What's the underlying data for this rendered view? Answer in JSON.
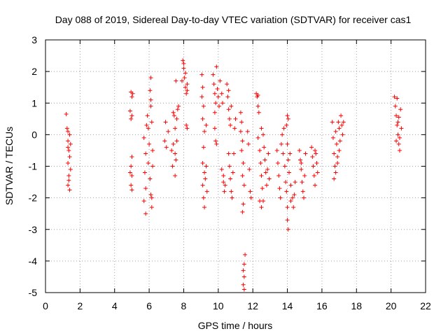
{
  "chart_data": {
    "type": "scatter",
    "title": "Day 088 of 2019, Sidereal Day-to-day VTEC variation (SDTVAR) for receiver cas1",
    "xlabel": "GPS time / hours",
    "ylabel": "SDTVAR / TECUs",
    "xlim": [
      0,
      22
    ],
    "ylim": [
      -5,
      3
    ],
    "xticks": [
      0,
      2,
      4,
      6,
      8,
      10,
      12,
      14,
      16,
      18,
      20,
      22
    ],
    "yticks": [
      -5,
      -4,
      -3,
      -2,
      -1,
      0,
      1,
      2,
      3
    ],
    "grid": true,
    "marker": "+",
    "color": "#ff0000",
    "series": [
      {
        "name": "SDTVAR",
        "points": [
          [
            1.2,
            0.65
          ],
          [
            1.25,
            0.2
          ],
          [
            1.3,
            0.1
          ],
          [
            1.3,
            -0.2
          ],
          [
            1.35,
            -0.5
          ],
          [
            1.3,
            -0.9
          ],
          [
            1.35,
            -1.3
          ],
          [
            1.3,
            -1.6
          ],
          [
            1.4,
            -1.75
          ],
          [
            1.4,
            0.0
          ],
          [
            1.45,
            -0.3
          ],
          [
            1.4,
            -0.7
          ],
          [
            1.45,
            -1.1
          ],
          [
            1.35,
            -1.45
          ],
          [
            1.3,
            -0.4
          ],
          [
            4.95,
            1.35
          ],
          [
            5.0,
            1.2
          ],
          [
            4.9,
            0.75
          ],
          [
            4.95,
            0.5
          ],
          [
            5.0,
            -0.7
          ],
          [
            4.95,
            -1.0
          ],
          [
            5.0,
            -1.3
          ],
          [
            4.95,
            -1.6
          ],
          [
            5.0,
            -1.75
          ],
          [
            4.9,
            -1.2
          ],
          [
            5.05,
            1.3
          ],
          [
            5.0,
            0.6
          ],
          [
            5.7,
            -0.1
          ],
          [
            5.8,
            -0.6
          ],
          [
            5.75,
            -1.2
          ],
          [
            5.8,
            -1.7
          ],
          [
            5.7,
            -2.1
          ],
          [
            5.8,
            -2.5
          ],
          [
            5.9,
            0.6
          ],
          [
            5.95,
            0.2
          ],
          [
            6.0,
            -0.3
          ],
          [
            5.95,
            -0.9
          ],
          [
            6.05,
            -1.4
          ],
          [
            6.1,
            -1.9
          ],
          [
            6.15,
            -2.3
          ],
          [
            6.1,
            1.8
          ],
          [
            6.05,
            1.4
          ],
          [
            6.1,
            0.9
          ],
          [
            6.15,
            0.4
          ],
          [
            6.2,
            -0.5
          ],
          [
            6.2,
            -1.0
          ],
          [
            6.15,
            -2.0
          ],
          [
            6.1,
            1.1
          ],
          [
            5.85,
            0.3
          ],
          [
            6.9,
            -0.2
          ],
          [
            7.0,
            -0.4
          ],
          [
            6.95,
            0.4
          ],
          [
            7.1,
            0.1
          ],
          [
            7.3,
            -0.5
          ],
          [
            7.35,
            -1.0
          ],
          [
            7.4,
            -0.3
          ],
          [
            7.45,
            0.6
          ],
          [
            7.5,
            0.2
          ],
          [
            7.55,
            -0.8
          ],
          [
            7.5,
            -1.3
          ],
          [
            7.6,
            0.5
          ],
          [
            7.65,
            0.8
          ],
          [
            7.6,
            -0.2
          ],
          [
            7.7,
            0.9
          ],
          [
            7.55,
            1.7
          ],
          [
            7.4,
            0.7
          ],
          [
            7.5,
            -0.6
          ],
          [
            7.95,
            2.35
          ],
          [
            8.0,
            2.1
          ],
          [
            8.05,
            1.8
          ],
          [
            8.1,
            1.5
          ],
          [
            8.15,
            1.3
          ],
          [
            8.2,
            1.6
          ],
          [
            8.0,
            2.25
          ],
          [
            8.1,
            1.95
          ],
          [
            8.2,
            1.4
          ],
          [
            8.15,
            0.3
          ],
          [
            8.2,
            0.2
          ],
          [
            7.9,
            1.7
          ],
          [
            9.05,
            1.9
          ],
          [
            9.1,
            1.5
          ],
          [
            9.05,
            1.2
          ],
          [
            9.15,
            0.9
          ],
          [
            9.1,
            0.5
          ],
          [
            9.2,
            0.1
          ],
          [
            9.15,
            -0.4
          ],
          [
            9.1,
            -0.9
          ],
          [
            9.2,
            -1.2
          ],
          [
            9.1,
            -1.6
          ],
          [
            9.15,
            -2.0
          ],
          [
            9.2,
            -2.3
          ],
          [
            9.25,
            -1.4
          ],
          [
            9.3,
            -1.0
          ],
          [
            9.35,
            -1.8
          ],
          [
            9.3,
            0.3
          ],
          [
            9.7,
            1.9
          ],
          [
            9.75,
            1.6
          ],
          [
            9.8,
            1.3
          ],
          [
            9.85,
            1.0
          ],
          [
            9.8,
            0.7
          ],
          [
            9.9,
            2.15
          ],
          [
            9.95,
            1.45
          ],
          [
            10.0,
            1.2
          ],
          [
            9.8,
            0.2
          ],
          [
            9.85,
            -0.2
          ],
          [
            9.9,
            -0.3
          ],
          [
            10.05,
            0.9
          ],
          [
            10.1,
            1.7
          ],
          [
            10.2,
            1.3
          ],
          [
            10.25,
            1.0
          ],
          [
            10.2,
            -1.1
          ],
          [
            10.3,
            -1.5
          ],
          [
            10.35,
            -1.8
          ],
          [
            10.3,
            -1.3
          ],
          [
            10.4,
            -1.6
          ],
          [
            10.5,
            1.6
          ],
          [
            10.55,
            1.2
          ],
          [
            10.6,
            0.8
          ],
          [
            10.65,
            0.5
          ],
          [
            10.7,
            0.3
          ],
          [
            10.75,
            0.9
          ],
          [
            10.6,
            -0.6
          ],
          [
            10.65,
            -1.0
          ],
          [
            10.7,
            -1.4
          ],
          [
            10.75,
            -1.8
          ],
          [
            10.8,
            -2.0
          ],
          [
            10.85,
            -1.2
          ],
          [
            10.9,
            -0.6
          ],
          [
            10.95,
            0.2
          ],
          [
            11.0,
            0.5
          ],
          [
            10.6,
            1.4
          ],
          [
            11.3,
            0.7
          ],
          [
            11.35,
            0.4
          ],
          [
            11.3,
            0.1
          ],
          [
            11.4,
            -0.2
          ],
          [
            11.35,
            -0.5
          ],
          [
            11.45,
            -0.9
          ],
          [
            11.4,
            -1.3
          ],
          [
            11.5,
            -1.6
          ],
          [
            11.45,
            -2.2
          ],
          [
            11.4,
            -2.45
          ],
          [
            11.55,
            -3.8
          ],
          [
            11.5,
            -4.1
          ],
          [
            11.45,
            -4.3
          ],
          [
            11.5,
            -4.5
          ],
          [
            11.45,
            -4.75
          ],
          [
            11.5,
            -4.9
          ],
          [
            11.7,
            0.1
          ],
          [
            11.75,
            -0.3
          ],
          [
            11.8,
            -1.1
          ],
          [
            11.85,
            -1.8
          ],
          [
            11.9,
            -2.0
          ],
          [
            12.2,
            1.3
          ],
          [
            12.25,
            1.2
          ],
          [
            12.3,
            0.9
          ],
          [
            12.35,
            0.7
          ],
          [
            12.3,
            -0.1
          ],
          [
            12.4,
            -0.5
          ],
          [
            12.45,
            -0.9
          ],
          [
            12.5,
            -1.3
          ],
          [
            12.55,
            -1.7
          ],
          [
            12.4,
            -2.1
          ],
          [
            12.5,
            0.2
          ],
          [
            12.6,
            0.0
          ],
          [
            12.65,
            -0.4
          ],
          [
            12.7,
            -0.8
          ],
          [
            12.75,
            -1.2
          ],
          [
            12.8,
            -1.6
          ],
          [
            12.85,
            -1.1
          ],
          [
            12.9,
            -0.6
          ],
          [
            12.95,
            -1.4
          ],
          [
            12.6,
            -2.1
          ],
          [
            12.3,
            1.25
          ],
          [
            12.5,
            -2.3
          ],
          [
            13.4,
            -0.5
          ],
          [
            13.45,
            -0.9
          ],
          [
            13.5,
            -1.3
          ],
          [
            13.55,
            -1.7
          ],
          [
            13.6,
            -2.0
          ],
          [
            13.65,
            -0.3
          ],
          [
            13.7,
            0.0
          ],
          [
            13.75,
            -0.6
          ],
          [
            13.8,
            0.2
          ],
          [
            13.85,
            -1.0
          ],
          [
            13.9,
            -1.5
          ],
          [
            13.95,
            0.3
          ],
          [
            14.0,
            0.6
          ],
          [
            14.05,
            0.5
          ],
          [
            14.0,
            -0.3
          ],
          [
            14.05,
            -0.8
          ],
          [
            13.95,
            -1.8
          ],
          [
            14.0,
            -2.3
          ],
          [
            14.0,
            -2.7
          ],
          [
            14.05,
            -3.0
          ],
          [
            14.1,
            -1.2
          ],
          [
            14.15,
            -0.6
          ],
          [
            14.2,
            -1.6
          ],
          [
            14.3,
            -2.0
          ],
          [
            14.35,
            -2.3
          ],
          [
            14.4,
            -1.9
          ],
          [
            14.45,
            -1.5
          ],
          [
            14.2,
            -2.1
          ],
          [
            14.7,
            -0.5
          ],
          [
            14.75,
            -0.8
          ],
          [
            14.8,
            -1.1
          ],
          [
            14.85,
            -1.5
          ],
          [
            14.9,
            -1.8
          ],
          [
            14.95,
            -2.0
          ],
          [
            15.0,
            -1.3
          ],
          [
            15.05,
            -0.6
          ],
          [
            14.8,
            -0.9
          ],
          [
            15.4,
            -0.4
          ],
          [
            15.45,
            -0.7
          ],
          [
            15.5,
            -1.0
          ],
          [
            15.55,
            -1.3
          ],
          [
            15.6,
            -1.6
          ],
          [
            15.65,
            -0.6
          ],
          [
            15.7,
            -0.9
          ],
          [
            15.75,
            -1.2
          ],
          [
            15.6,
            -0.5
          ],
          [
            16.6,
            0.4
          ],
          [
            16.65,
            -0.1
          ],
          [
            16.7,
            -0.6
          ],
          [
            16.75,
            -1.0
          ],
          [
            16.7,
            -1.4
          ],
          [
            16.8,
            0.1
          ],
          [
            16.85,
            -0.3
          ],
          [
            16.9,
            -0.7
          ],
          [
            16.95,
            0.4
          ],
          [
            17.0,
            0.2
          ],
          [
            17.05,
            -0.2
          ],
          [
            17.1,
            0.6
          ],
          [
            17.15,
            0.3
          ],
          [
            17.2,
            0.0
          ],
          [
            17.25,
            0.4
          ],
          [
            16.8,
            -1.2
          ],
          [
            16.9,
            -0.9
          ],
          [
            17.0,
            -0.5
          ],
          [
            20.2,
            1.2
          ],
          [
            20.25,
            0.9
          ],
          [
            20.3,
            0.6
          ],
          [
            20.35,
            0.3
          ],
          [
            20.4,
            0.0
          ],
          [
            20.45,
            -0.3
          ],
          [
            20.5,
            -0.5
          ],
          [
            20.3,
            -0.2
          ],
          [
            20.4,
            0.4
          ],
          [
            20.55,
            0.8
          ],
          [
            20.6,
            0.2
          ],
          [
            20.5,
            -0.1
          ],
          [
            20.35,
            1.15
          ],
          [
            20.45,
            0.55
          ]
        ]
      }
    ]
  }
}
